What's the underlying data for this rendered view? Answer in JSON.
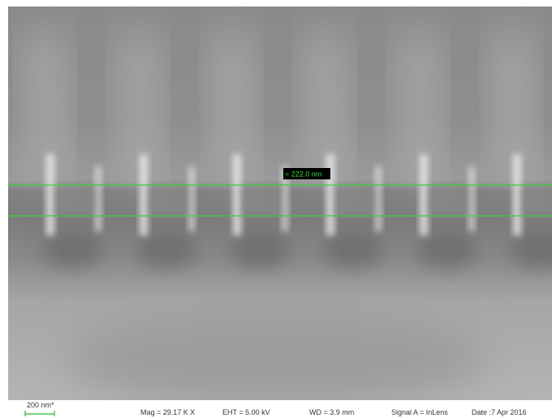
{
  "measurement": {
    "label": "= 222.0 nm"
  },
  "info_bar": {
    "scale_bar": "200 nm*",
    "fields": [
      "Mag =  29.17 K X",
      "EHT =  5.00 kV",
      "WD =  3.9 mm",
      "Signal A = InLens",
      "Date :7 Apr 2016"
    ]
  }
}
